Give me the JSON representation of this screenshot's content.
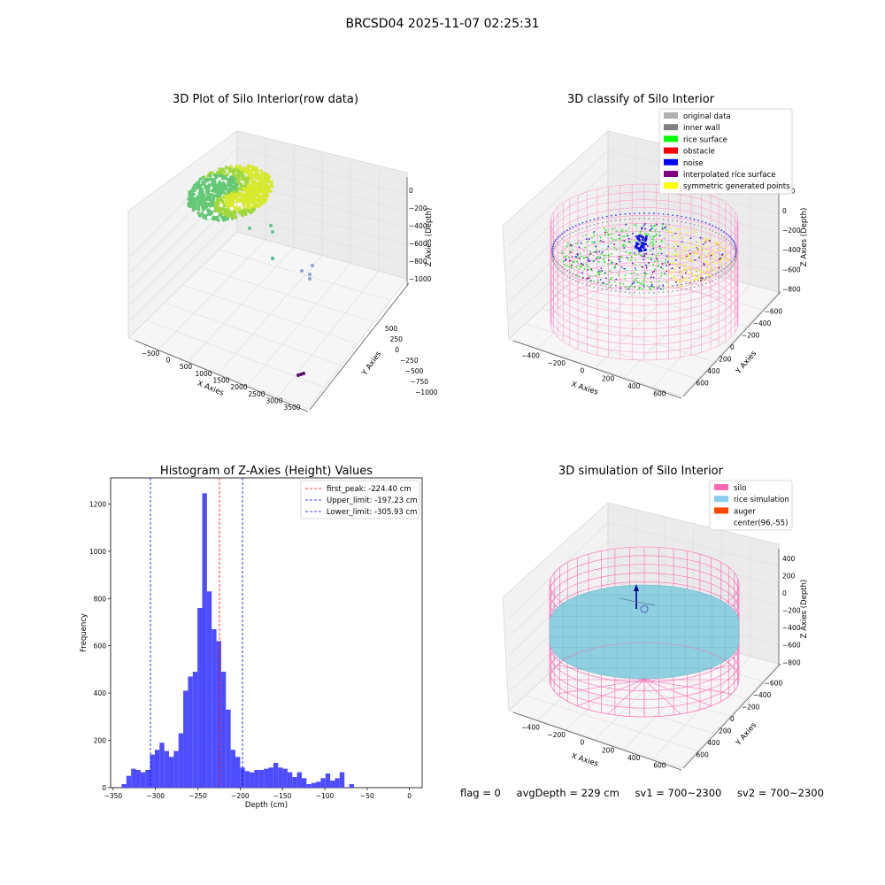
{
  "figure_title": "BRCSD04 2025-11-07 02:25:31",
  "status": {
    "flag": "flag = 0",
    "avg_depth": "avgDepth = 229 cm",
    "sv1": "sv1 = 700~2300",
    "sv2": "sv2 = 700~2300"
  },
  "colors": {
    "histogram": "#4d4dff",
    "peak_line": "#ff0000",
    "limit_line": "#0000ff",
    "silo_mesh": "#ff69b4",
    "rice": "#8ecfe0"
  },
  "chart_data": [
    {
      "type": "scatter3d",
      "title": "3D Plot of Silo Interior(row data)",
      "xlabel": "X Axies",
      "ylabel": "Y Axies",
      "zlabel": "Z Axies (Depth)",
      "x_ticks": [
        "−500",
        "0",
        "500",
        "1000",
        "1500",
        "2000",
        "2500",
        "3000",
        "3500"
      ],
      "y_ticks": [
        "500",
        "250",
        "0",
        "−250",
        "−500",
        "−750",
        "−1000"
      ],
      "z_ticks": [
        "0",
        "−200",
        "−400",
        "−600",
        "−800",
        "−1000"
      ],
      "xlim": [
        -600,
        3600
      ],
      "ylim": [
        -1100,
        650
      ],
      "zlim": [
        -1100,
        50
      ],
      "clusters": [
        {
          "desc": "dense surface",
          "x": [
            -200,
            600
          ],
          "y": [
            -200,
            500
          ],
          "z": [
            -300,
            0
          ],
          "color": "#9bd43a"
        },
        {
          "x": 700,
          "y": 300,
          "z": -430,
          "color": "#5fc98a"
        },
        {
          "x": 900,
          "y": 250,
          "z": -470,
          "color": "#5fc98a"
        },
        {
          "x": 1000,
          "y": 100,
          "z": -680,
          "color": "#4fb99a"
        },
        {
          "x": 1600,
          "y": -350,
          "z": -780,
          "color": "#8f9fd0"
        },
        {
          "x": 1800,
          "y": -400,
          "z": -820,
          "color": "#8f9fd0"
        },
        {
          "x": 3200,
          "y": -1000,
          "z": -1000,
          "color": "#5b0f6b"
        }
      ]
    },
    {
      "type": "scatter3d",
      "title": "3D classify of Silo Interior",
      "xlabel": "X Axies",
      "ylabel": "Y Axies",
      "zlabel": "Z Axies (Depth)",
      "x_ticks": [
        "−400",
        "−200",
        "0",
        "200",
        "400",
        "600"
      ],
      "y_ticks": [
        "600",
        "400",
        "200",
        "0",
        "−200",
        "−400",
        "−600"
      ],
      "z_ticks": [
        "200",
        "0",
        "−200",
        "−400",
        "−600",
        "−800"
      ],
      "legend": [
        {
          "label": "original data",
          "color": "#b0b0b0"
        },
        {
          "label": "inner wall",
          "color": "#808080"
        },
        {
          "label": "rice surface",
          "color": "#00ff00"
        },
        {
          "label": "obstacle",
          "color": "#ff0000"
        },
        {
          "label": "noise",
          "color": "#0000ff"
        },
        {
          "label": "interpolated rice surface",
          "color": "#800080"
        },
        {
          "label": "symmetric generated points",
          "color": "#ffff00"
        }
      ]
    },
    {
      "type": "bar",
      "title": "Histogram of Z-Axies (Height) Values",
      "xlabel": "Depth (cm)",
      "ylabel": "Frequency",
      "xlim": [
        -353,
        15
      ],
      "ylim": [
        0,
        1310
      ],
      "x_ticks": [
        "−350",
        "−300",
        "−250",
        "−200",
        "−150",
        "−100",
        "−50",
        "0"
      ],
      "y_ticks": [
        "0",
        "200",
        "400",
        "600",
        "800",
        "1000",
        "1200"
      ],
      "bin_start": -340,
      "bin_width": 5.6,
      "values": [
        15,
        50,
        80,
        75,
        65,
        75,
        140,
        160,
        190,
        155,
        130,
        155,
        230,
        410,
        470,
        490,
        760,
        1245,
        830,
        670,
        620,
        490,
        330,
        160,
        130,
        85,
        70,
        65,
        75,
        75,
        80,
        85,
        105,
        85,
        80,
        65,
        45,
        65,
        40,
        15,
        20,
        25,
        40,
        60,
        30,
        40,
        65,
        0,
        15
      ],
      "lines": [
        {
          "label": "first_peak: -224.40 cm",
          "x": -224.4,
          "color": "#ff0000"
        },
        {
          "label": "Upper_limit: -197.23 cm",
          "x": -197.23,
          "color": "#0000ff"
        },
        {
          "label": "Lower_limit: -305.93 cm",
          "x": -305.93,
          "color": "#0000ff"
        }
      ]
    },
    {
      "type": "surface3d",
      "title": "3D simulation of Silo Interior",
      "xlabel": "X Axies",
      "ylabel": "Y Axies",
      "zlabel": "Z Axies (Depth)",
      "x_ticks": [
        "−400",
        "−200",
        "0",
        "200",
        "400",
        "600"
      ],
      "y_ticks": [
        "600",
        "400",
        "200",
        "0",
        "−200",
        "−400",
        "−600"
      ],
      "z_ticks": [
        "400",
        "200",
        "0",
        "−200",
        "−400",
        "−600",
        "−800"
      ],
      "legend": [
        {
          "label": "silo",
          "color": "#ff69b4"
        },
        {
          "label": "rice simulation",
          "color": "#87ceeb"
        },
        {
          "label": "auger",
          "color": "#ff4500"
        },
        {
          "label": "center(96,-55)",
          "color": ""
        }
      ]
    }
  ]
}
